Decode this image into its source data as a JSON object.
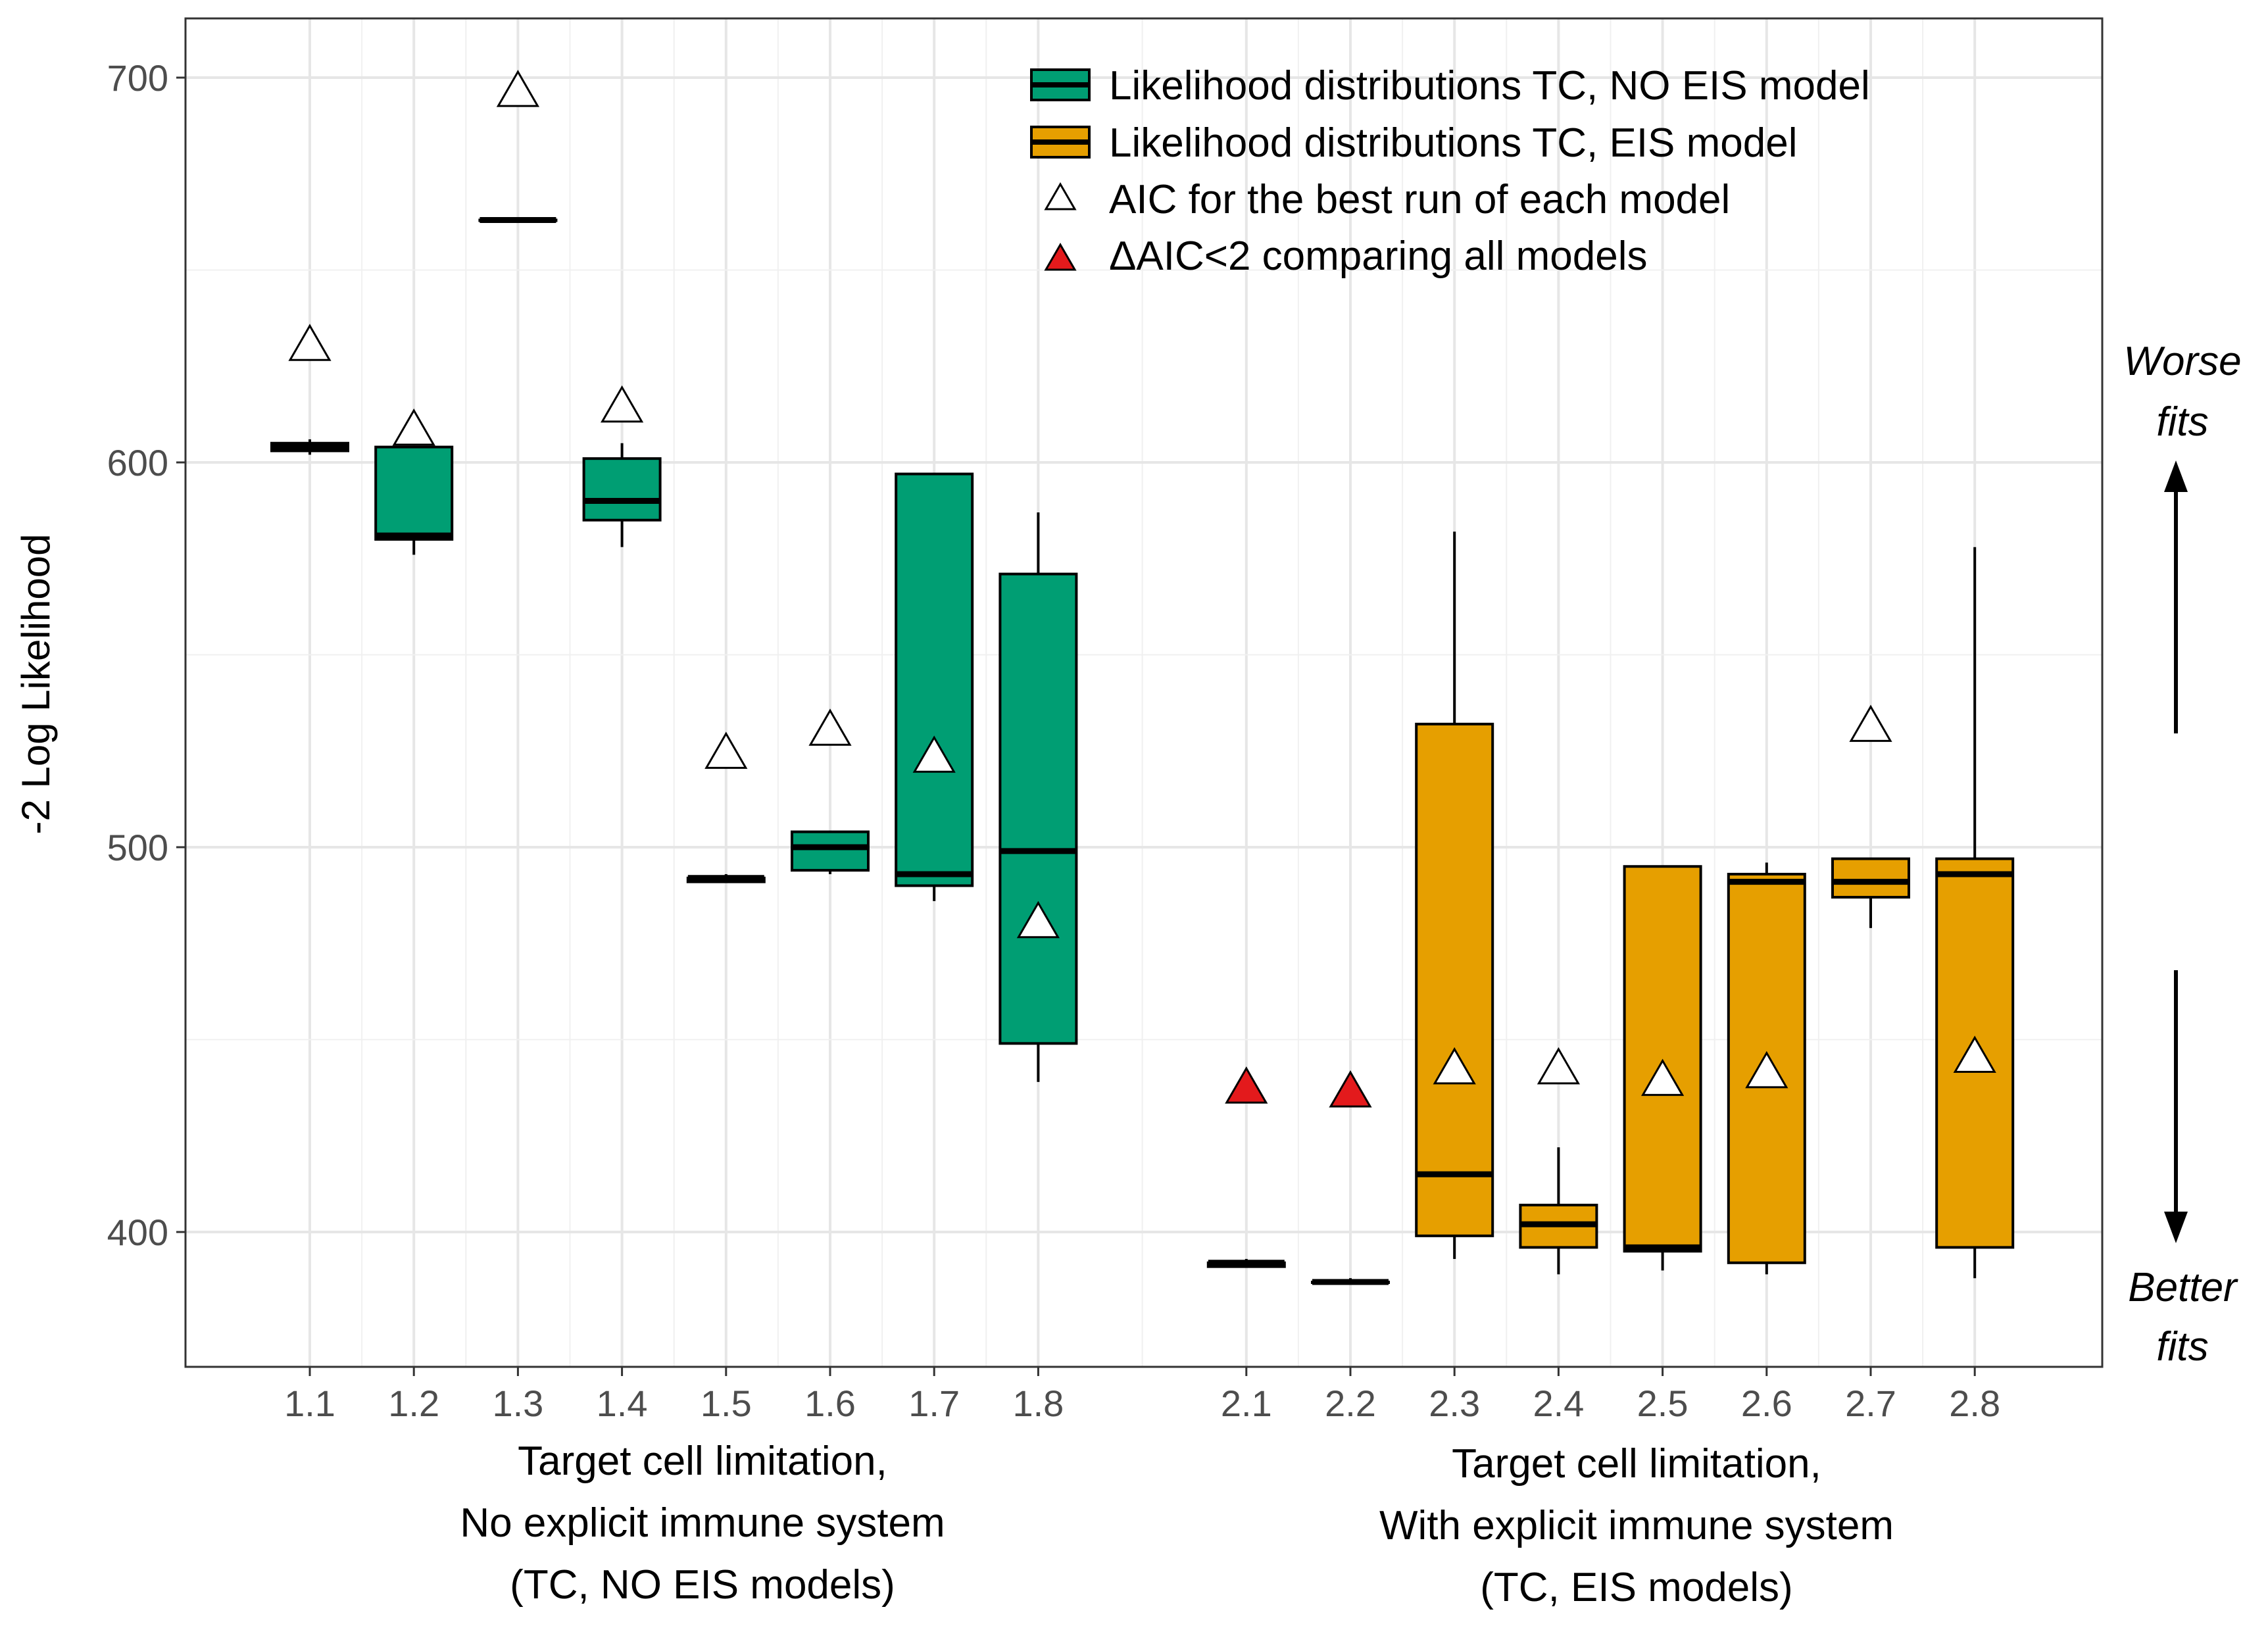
{
  "chart_data": {
    "type": "boxplot",
    "ylabel": "-2 Log Likelihood",
    "ylim": [
      365,
      716
    ],
    "yticks": [
      400,
      500,
      600,
      700
    ],
    "grid": true,
    "legend_position": "top-right",
    "legend": [
      {
        "label": "Likelihood distributions TC, NO EIS model",
        "kind": "box",
        "color": "#009E73"
      },
      {
        "label": "Likelihood distributions TC, EIS model",
        "kind": "box",
        "color": "#E69F00"
      },
      {
        "label": "AIC for the best run of each model",
        "kind": "triangle-open"
      },
      {
        "label": "ΔAIC<2 comparing all models",
        "kind": "triangle-red",
        "color": "#E31A1C"
      }
    ],
    "group_labels": [
      {
        "lines": [
          "Target cell limitation,",
          "No explicit immune system",
          "(TC, NO EIS models)"
        ]
      },
      {
        "lines": [
          "Target cell limitation,",
          "With explicit immune system",
          "(TC, EIS models)"
        ]
      }
    ],
    "side_labels": {
      "worse": [
        "Worse",
        "fits"
      ],
      "better": [
        "Better",
        "fits"
      ]
    },
    "series": [
      {
        "name": "TC, NO EIS",
        "color": "#009E73",
        "boxes": [
          {
            "label": "1.1",
            "whisker_low": 602,
            "q1": 603,
            "median": 604,
            "q3": 605,
            "whisker_high": 606,
            "aic": 630,
            "aic_selected": false
          },
          {
            "label": "1.2",
            "whisker_low": 576,
            "q1": 580,
            "median": 581,
            "q3": 604,
            "whisker_high": 604,
            "aic": 608,
            "aic_selected": false
          },
          {
            "label": "1.3",
            "whisker_low": 663,
            "q1": 663,
            "median": 663,
            "q3": 663,
            "whisker_high": 663,
            "aic": 696,
            "aic_selected": false
          },
          {
            "label": "1.4",
            "whisker_low": 578,
            "q1": 585,
            "median": 590,
            "q3": 601,
            "whisker_high": 605,
            "aic": 614,
            "aic_selected": false
          },
          {
            "label": "1.5",
            "whisker_low": 491,
            "q1": 491,
            "median": 492,
            "q3": 492,
            "whisker_high": 493,
            "aic": 524,
            "aic_selected": false
          },
          {
            "label": "1.6",
            "whisker_low": 493,
            "q1": 494,
            "median": 500,
            "q3": 504,
            "whisker_high": 504,
            "aic": 530,
            "aic_selected": false
          },
          {
            "label": "1.7",
            "whisker_low": 486,
            "q1": 490,
            "median": 493,
            "q3": 597,
            "whisker_high": 597,
            "aic": 523,
            "aic_selected": false
          },
          {
            "label": "1.8",
            "whisker_low": 439,
            "q1": 449,
            "median": 499,
            "q3": 571,
            "whisker_high": 587,
            "aic": 480,
            "aic_selected": false
          }
        ]
      },
      {
        "name": "TC, EIS",
        "color": "#E69F00",
        "boxes": [
          {
            "label": "2.1",
            "whisker_low": 391,
            "q1": 391,
            "median": 392,
            "q3": 392,
            "whisker_high": 393,
            "aic": 437,
            "aic_selected": true
          },
          {
            "label": "2.2",
            "whisker_low": 387,
            "q1": 387,
            "median": 387,
            "q3": 387,
            "whisker_high": 388,
            "aic": 436,
            "aic_selected": true
          },
          {
            "label": "2.3",
            "whisker_low": 393,
            "q1": 399,
            "median": 415,
            "q3": 532,
            "whisker_high": 582,
            "aic": 442,
            "aic_selected": false
          },
          {
            "label": "2.4",
            "whisker_low": 389,
            "q1": 396,
            "median": 402,
            "q3": 407,
            "whisker_high": 422,
            "aic": 442,
            "aic_selected": false
          },
          {
            "label": "2.5",
            "whisker_low": 390,
            "q1": 395,
            "median": 396,
            "q3": 495,
            "whisker_high": 495,
            "aic": 439,
            "aic_selected": false
          },
          {
            "label": "2.6",
            "whisker_low": 389,
            "q1": 392,
            "median": 491,
            "q3": 493,
            "whisker_high": 496,
            "aic": 441,
            "aic_selected": false
          },
          {
            "label": "2.7",
            "whisker_low": 479,
            "q1": 487,
            "median": 491,
            "q3": 497,
            "whisker_high": 497,
            "aic": 531,
            "aic_selected": false
          },
          {
            "label": "2.8",
            "whisker_low": 388,
            "q1": 396,
            "median": 493,
            "q3": 497,
            "whisker_high": 578,
            "aic": 445,
            "aic_selected": false
          }
        ]
      }
    ]
  }
}
